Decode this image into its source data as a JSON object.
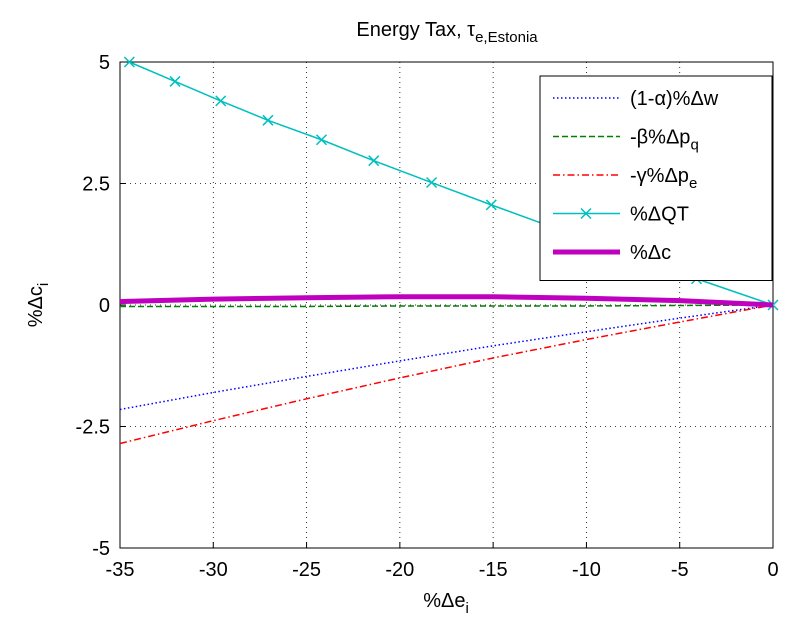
{
  "chart_data": {
    "type": "line",
    "title": "Energy Tax, τ",
    "title_sub": "e,Estonia",
    "x_label": "%Δe",
    "x_label_sub": "i",
    "y_label": "%Δc",
    "y_label_sub": "i",
    "xlim": [
      -35,
      0
    ],
    "xticks": [
      -35,
      -30,
      -25,
      -20,
      -15,
      -10,
      -5,
      0
    ],
    "ylim": [
      -5,
      5
    ],
    "yticks": [
      -5,
      -2.5,
      0,
      2.5,
      5
    ],
    "grid": true,
    "legend": "upper right",
    "series": [
      {
        "name": "(1-α)%Δw",
        "color": "#0000ff",
        "style": "dotted",
        "x": [
          -35,
          -30,
          -25,
          -20,
          -15,
          -10,
          -5,
          0
        ],
        "values": [
          -2.15,
          -1.8,
          -1.47,
          -1.15,
          -0.84,
          -0.55,
          -0.27,
          0
        ]
      },
      {
        "name": "-β%Δp",
        "name_sub": "q",
        "color": "#008000",
        "style": "dashed",
        "x": [
          -35,
          -30,
          -25,
          -20,
          -15,
          -10,
          -5,
          0
        ],
        "values": [
          -0.03,
          -0.03,
          -0.03,
          -0.02,
          -0.02,
          -0.02,
          -0.01,
          0
        ]
      },
      {
        "name": "-γ%Δp",
        "name_sub": "e",
        "color": "#ff0000",
        "style": "dashdot",
        "x": [
          -35,
          -30,
          -25,
          -20,
          -15,
          -10,
          -5,
          0
        ],
        "values": [
          -2.85,
          -2.38,
          -1.93,
          -1.5,
          -1.09,
          -0.71,
          -0.35,
          0
        ]
      },
      {
        "name": "%ΔQT",
        "color": "#00bfbf",
        "style": "solid",
        "marker": "x",
        "x": [
          -34.5,
          -32.05,
          -29.6,
          -27.07,
          -24.2,
          -21.4,
          -18.3,
          -15.1,
          -11.6,
          -7.9,
          -4.1,
          0
        ],
        "values": [
          5,
          4.6,
          4.2,
          3.8,
          3.4,
          2.97,
          2.52,
          2.06,
          1.57,
          1.07,
          0.54,
          0
        ]
      },
      {
        "name": "%Δc",
        "color": "#bf00bf",
        "style": "thick",
        "x": [
          -35,
          -30,
          -25,
          -20,
          -15,
          -10,
          -5,
          0
        ],
        "values": [
          0.07,
          0.12,
          0.15,
          0.17,
          0.17,
          0.14,
          0.09,
          0
        ]
      }
    ]
  }
}
